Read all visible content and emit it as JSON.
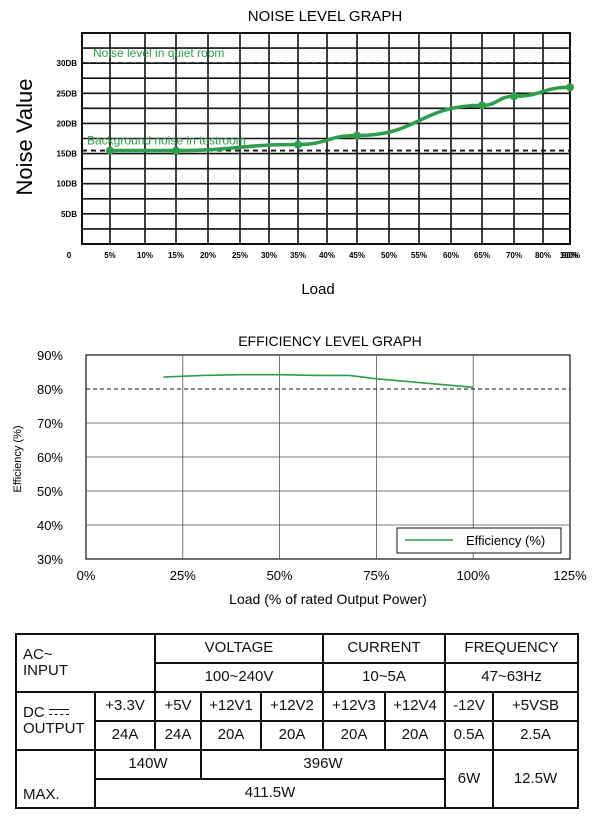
{
  "chart_data": [
    {
      "type": "line",
      "title": "NOISE LEVEL GRAPH",
      "xlabel": "Load",
      "ylabel": "Noise Value",
      "x_ticks": [
        "0",
        "5%",
        "10%",
        "15%",
        "20%",
        "25%",
        "30%",
        "35%",
        "40%",
        "45%",
        "50%",
        "55%",
        "60%",
        "65%",
        "70%",
        "80%",
        "90%",
        "100%"
      ],
      "y_ticks": [
        "5DB",
        "10DB",
        "15DB",
        "20DB",
        "25DB",
        "30DB"
      ],
      "ylim": [
        0,
        35
      ],
      "grid": true,
      "series": [
        {
          "x": [
            10,
            20,
            40,
            50,
            70,
            80,
            100
          ],
          "values": [
            15.5,
            15.5,
            16.5,
            18,
            23,
            24.5,
            26
          ],
          "color": "#2e9e4a"
        }
      ],
      "reference_lines": [
        {
          "label": "Noise level in quiet room",
          "value": 30
        },
        {
          "label": "Background noise in testroom",
          "value": 15.5
        }
      ]
    },
    {
      "type": "line",
      "title": "EFFICIENCY LEVEL GRAPH",
      "xlabel": "Load (% of rated Output Power)",
      "ylabel": "Efficiency (%)",
      "x_ticks": [
        "0%",
        "25%",
        "50%",
        "75%",
        "100%",
        "125%"
      ],
      "y_ticks": [
        "30%",
        "40%",
        "50%",
        "60%",
        "70%",
        "80%",
        "90%"
      ],
      "xlim": [
        0,
        125
      ],
      "ylim": [
        30,
        90
      ],
      "grid": true,
      "legend": {
        "position": "bottom-right"
      },
      "series": [
        {
          "name": "Efficiency (%)",
          "color": "#2e9e4a",
          "x": [
            20,
            30,
            40,
            50,
            60,
            68,
            75,
            85,
            100
          ],
          "values": [
            83.5,
            84,
            84.2,
            84.2,
            84,
            84,
            83,
            82,
            80.5
          ]
        }
      ],
      "reference_lines": [
        {
          "value": 80
        }
      ]
    }
  ],
  "table": {
    "ac_input": "AC~\nINPUT",
    "voltage_header": "VOLTAGE",
    "current_header": "CURRENT",
    "frequency_header": "FREQUENCY",
    "voltage": "100~240V",
    "current": "10~5A",
    "frequency": "47~63Hz",
    "dc_output_top": "DC",
    "dc_output_bottom": "OUTPUT",
    "rails": [
      "+3.3V",
      "+5V",
      "+12V1",
      "+12V2",
      "+12V3",
      "+12V4",
      "-12V",
      "+5VSB"
    ],
    "amps": [
      "24A",
      "24A",
      "20A",
      "20A",
      "20A",
      "20A",
      "0.5A",
      "2.5A"
    ],
    "max_label": "MAX.",
    "max_33_5": "140W",
    "max_12": "396W",
    "max_total": "411.5W",
    "max_neg12": "6W",
    "max_5vsb": "12.5W"
  }
}
